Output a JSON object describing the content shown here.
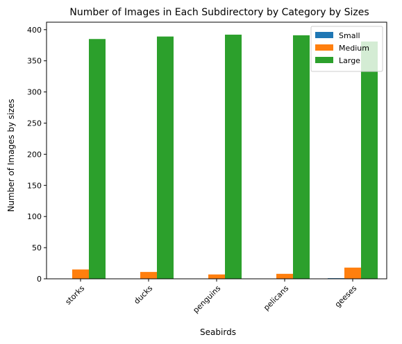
{
  "chart_data": {
    "type": "bar",
    "title": "Number of Images in Each Subdirectory by Category by Sizes",
    "xlabel": "Seabirds",
    "ylabel": "Number of Images by sizes",
    "categories": [
      "storks",
      "ducks",
      "penguins",
      "pelicans",
      "geeses"
    ],
    "series": [
      {
        "name": "Small",
        "color": "#1f77b4",
        "values": [
          0,
          0,
          0,
          0,
          1
        ]
      },
      {
        "name": "Medium",
        "color": "#ff7f0e",
        "values": [
          15,
          11,
          7,
          8,
          18
        ]
      },
      {
        "name": "Large",
        "color": "#2ca02c",
        "values": [
          385,
          389,
          392,
          391,
          381
        ]
      }
    ],
    "ylim": [
      0,
      412
    ],
    "yticks": [
      0,
      50,
      100,
      150,
      200,
      250,
      300,
      350,
      400
    ],
    "legend": "top-right",
    "grid": false
  }
}
